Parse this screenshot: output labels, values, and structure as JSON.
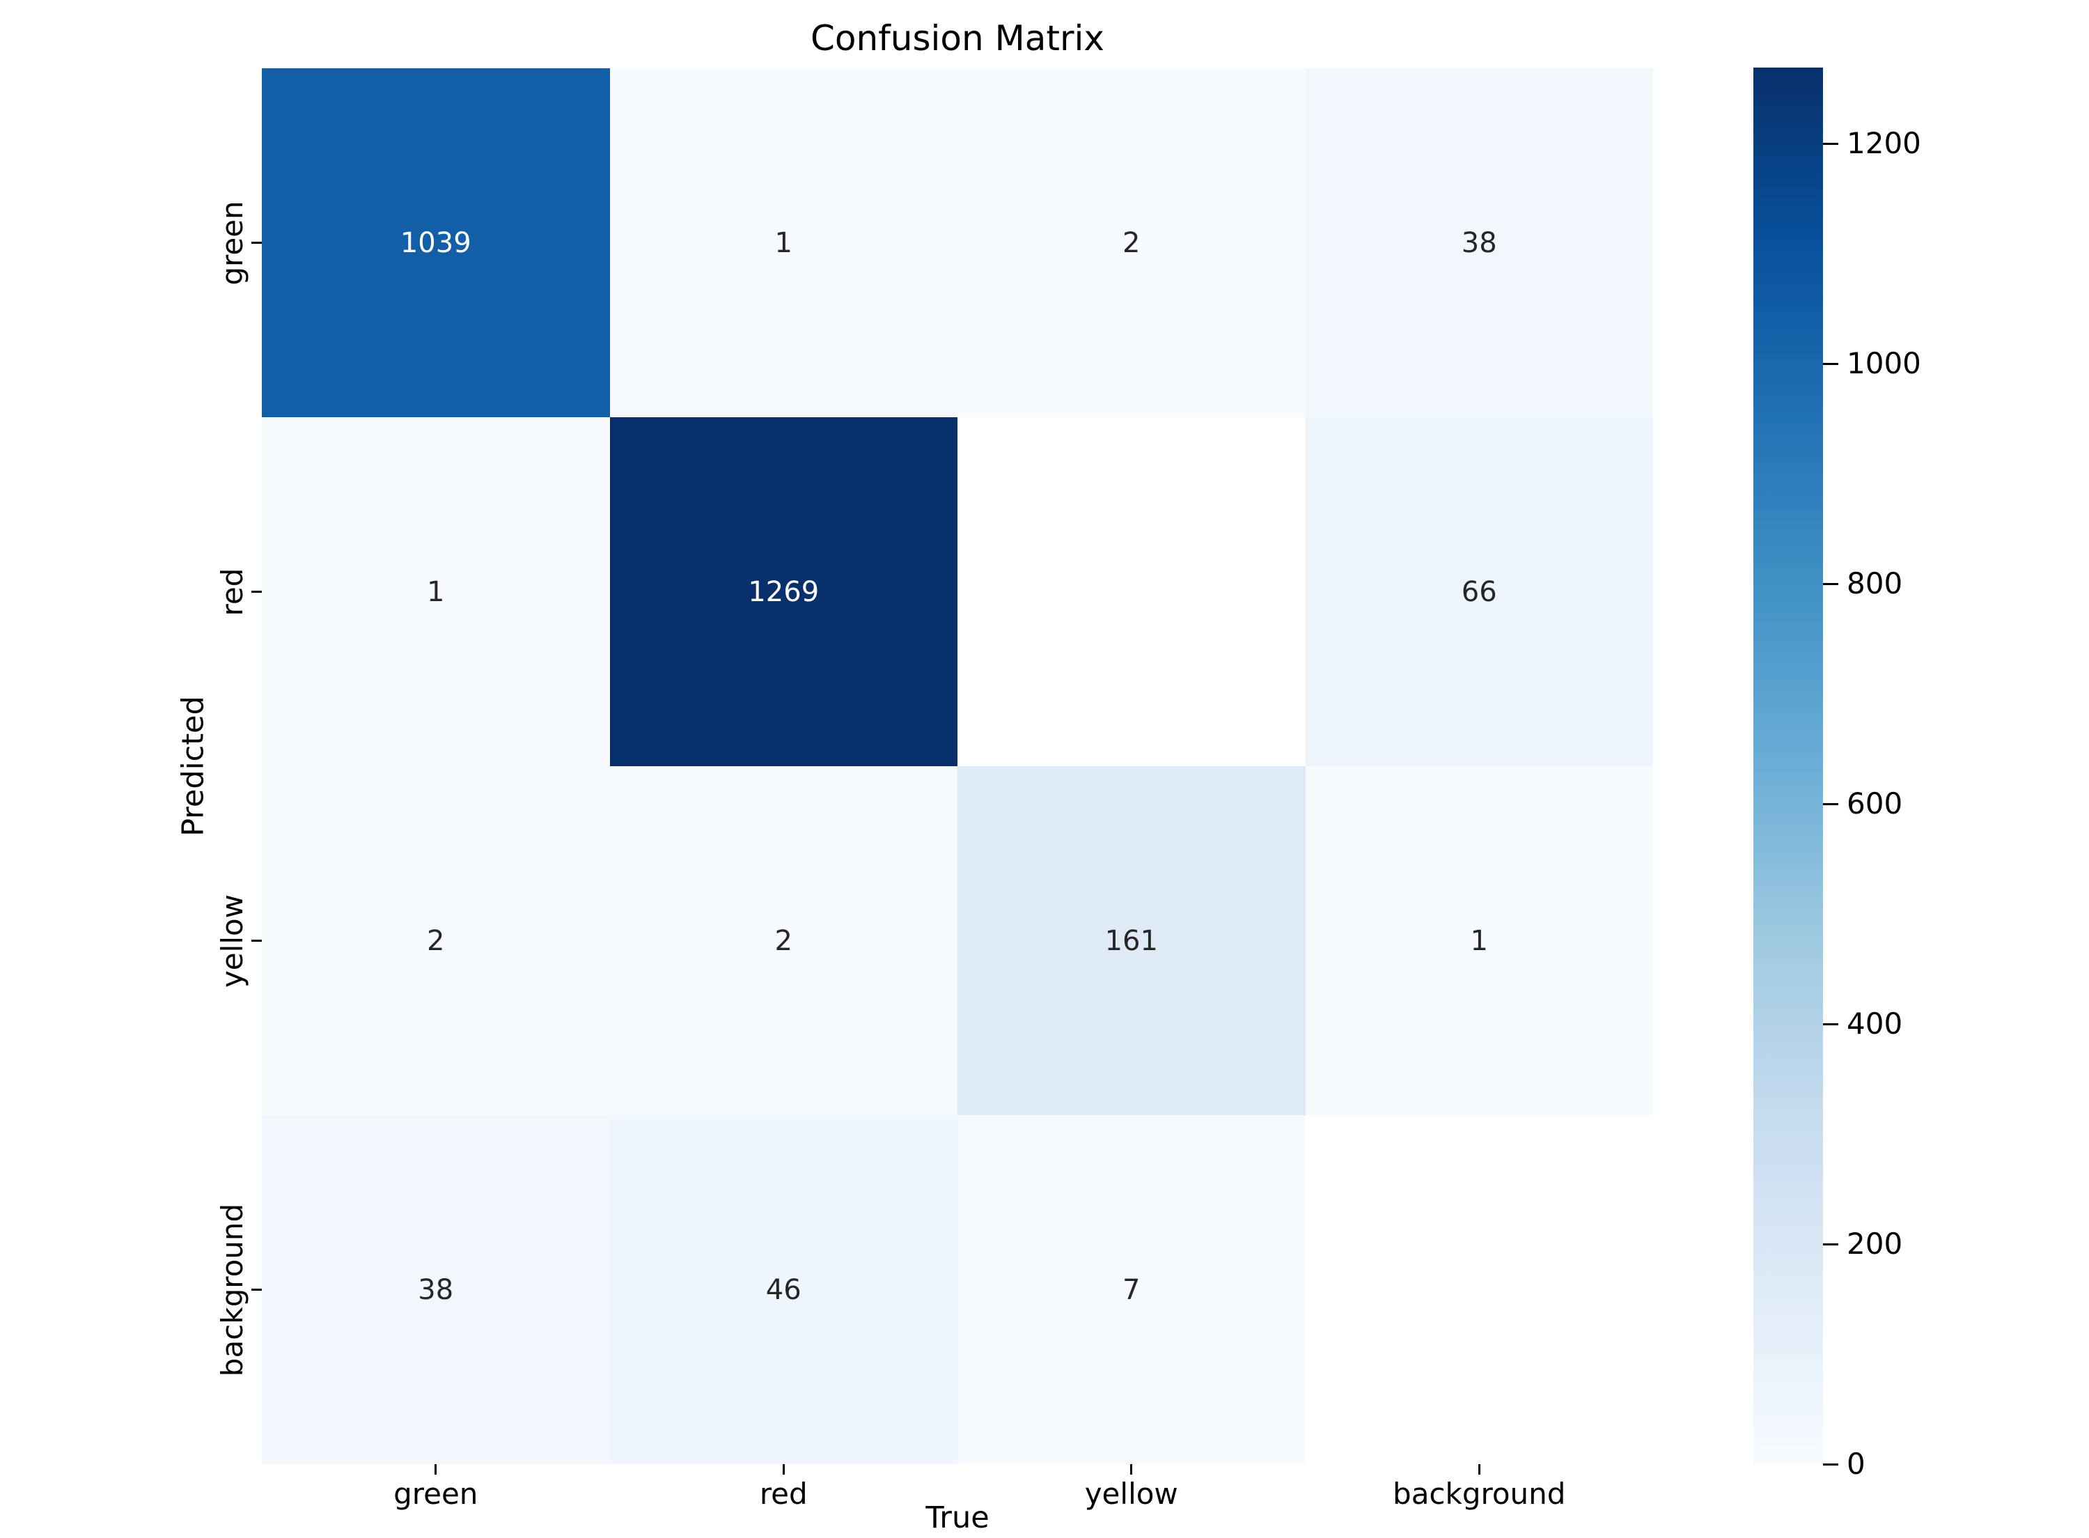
{
  "title": "Confusion Matrix",
  "xlabel": "True",
  "ylabel": "Predicted",
  "chart_data": {
    "type": "heatmap",
    "x_categories": [
      "green",
      "red",
      "yellow",
      "background"
    ],
    "y_categories": [
      "green",
      "red",
      "yellow",
      "background"
    ],
    "values": [
      [
        1039,
        1,
        2,
        38
      ],
      [
        1,
        1269,
        null,
        66
      ],
      [
        2,
        2,
        161,
        1
      ],
      [
        38,
        46,
        7,
        null
      ]
    ],
    "vmin": 0,
    "vmax": 1269,
    "colormap": "Blues",
    "colormap_stops": [
      "#f7fbff",
      "#deebf7",
      "#c6dbef",
      "#9ecae1",
      "#6baed6",
      "#4292c6",
      "#2171b5",
      "#08519c",
      "#08306b"
    ],
    "masked_cell_color": "#ffffff",
    "annotation_dark_color": "#262626",
    "annotation_light_color": "#ffffff",
    "colorbar_ticks": [
      0,
      200,
      400,
      600,
      800,
      1000,
      1200
    ],
    "legend_position": "right-colorbar",
    "grid": false
  }
}
